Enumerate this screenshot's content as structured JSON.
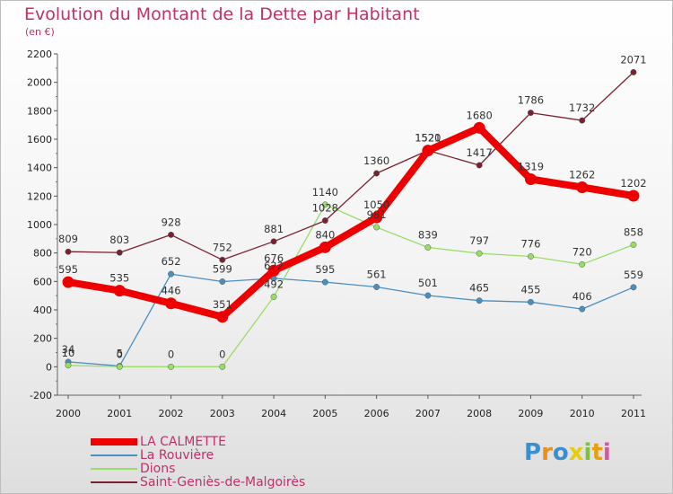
{
  "chart_data": {
    "type": "line",
    "title": "Evolution du Montant de la Dette par Habitant",
    "subtitle": "(en €)",
    "x": [
      "2000",
      "2001",
      "2002",
      "2003",
      "2004",
      "2005",
      "2006",
      "2007",
      "2008",
      "2009",
      "2010",
      "2011"
    ],
    "ylim": [
      -200,
      2200
    ],
    "yticks": [
      -200,
      0,
      200,
      400,
      600,
      800,
      1000,
      1200,
      1400,
      1600,
      1800,
      2000,
      2200
    ],
    "grid": false,
    "legend_position": "bottom-left",
    "series": [
      {
        "name": "LA CALMETTE",
        "color": "#ee0000",
        "values": [
          595,
          535,
          446,
          351,
          676,
          840,
          1050,
          1520,
          1680,
          1319,
          1262,
          1202
        ]
      },
      {
        "name": "La Rouvière",
        "color": "#4a8fc2",
        "values": [
          34,
          5,
          652,
          599,
          622,
          595,
          561,
          501,
          465,
          455,
          406,
          559
        ]
      },
      {
        "name": "Dions",
        "color": "#99dd66",
        "values": [
          10,
          0,
          0,
          0,
          492,
          1140,
          981,
          839,
          797,
          776,
          720,
          858
        ]
      },
      {
        "name": "Saint-Geniès-de-Malgoirès",
        "color": "#7a2030",
        "values": [
          809,
          803,
          928,
          752,
          881,
          1028,
          1360,
          1521,
          1417,
          1786,
          1732,
          2071
        ]
      }
    ],
    "data_labels": {
      "LA CALMETTE": [
        "595",
        "535",
        "446",
        "351",
        "676",
        "840",
        "1050",
        "1520",
        "1680",
        "1319",
        "1262",
        "1202"
      ],
      "La Rouvière": [
        "34",
        "5",
        "652",
        "599",
        "622",
        "595",
        "561",
        "501",
        "465",
        "455",
        "406",
        "559"
      ],
      "Dions": [
        "10",
        "0",
        "0",
        "0",
        "492",
        "1140",
        "981",
        "839",
        "797",
        "776",
        "720",
        "858"
      ],
      "Saint-Geniès-de-Malgoirès": [
        "809",
        "803",
        "928",
        "752",
        "881",
        "1028",
        "1360",
        "1521",
        "1417",
        "1786",
        "1732",
        "2071"
      ]
    }
  },
  "branding": {
    "logo_text": "Proxiti",
    "logo_colors": [
      "#3a8fd0",
      "#f08c1a",
      "#3a8fd0",
      "#e8cc10",
      "#7ac143",
      "#e8a010",
      "#d05aa0"
    ]
  }
}
